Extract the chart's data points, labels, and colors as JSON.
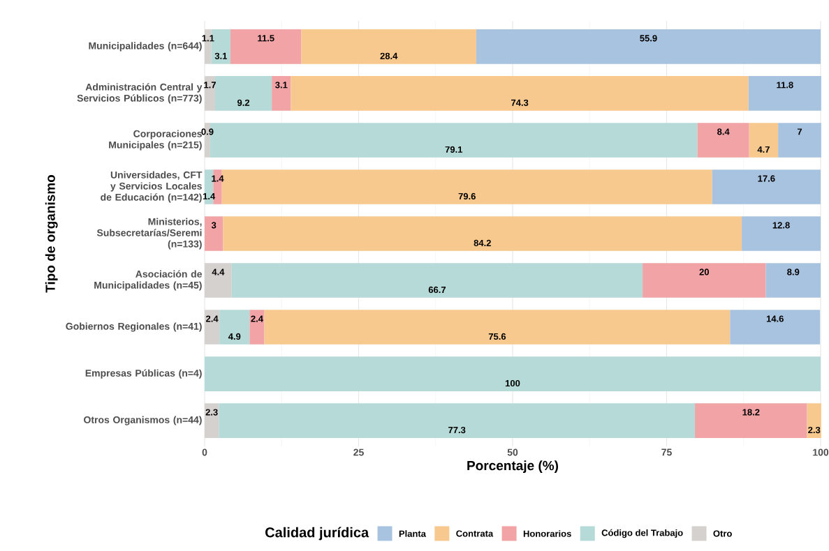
{
  "chart_data": {
    "type": "bar",
    "orientation": "horizontal",
    "stacked": true,
    "data_labels": true,
    "xlabel": "Porcentaje (%)",
    "ylabel": "Tipo de organismo",
    "legend_title": "Calidad jurídica",
    "categories": [
      "Municipalidades (n=644)",
      "Administración Central y Servicios Públicos (n=773)",
      "Corporaciones Municipales (n=215)",
      "Universidades, CFT y Servicios Locales de Educación (n=142)",
      "Ministerios, Subsecretarías/Seremi (n=133)",
      "Asociación de Municipalidades (n=45)",
      "Gobiernos Regionales (n=41)",
      "Empresas Públicas (n=4)",
      "Otros Organismos (n=44)"
    ],
    "series": [
      {
        "name": "Otro",
        "color": "#d5d1cf",
        "values": [
          1.1,
          1.7,
          0.9,
          null,
          null,
          4.4,
          2.4,
          null,
          2.3
        ]
      },
      {
        "name": "Código del Trabajo",
        "color": "#b5dad7",
        "values": [
          3.1,
          9.2,
          79.1,
          1.4,
          null,
          66.7,
          4.9,
          100,
          77.3
        ]
      },
      {
        "name": "Honorarios",
        "color": "#f2a3a6",
        "values": [
          11.5,
          3.1,
          8.4,
          1.4,
          3,
          20,
          2.4,
          null,
          18.2
        ]
      },
      {
        "name": "Contrata",
        "color": "#f7c98e",
        "values": [
          28.4,
          74.3,
          4.7,
          79.6,
          84.2,
          null,
          75.6,
          null,
          2.3
        ]
      },
      {
        "name": "Planta",
        "color": "#a8c3e0",
        "values": [
          55.9,
          11.8,
          7,
          17.6,
          12.8,
          8.9,
          14.6,
          null,
          null
        ]
      }
    ],
    "xlim": [
      0,
      100
    ],
    "xticks": [
      0,
      25,
      50,
      75,
      100
    ],
    "grid": "x",
    "legend": "bottom"
  }
}
